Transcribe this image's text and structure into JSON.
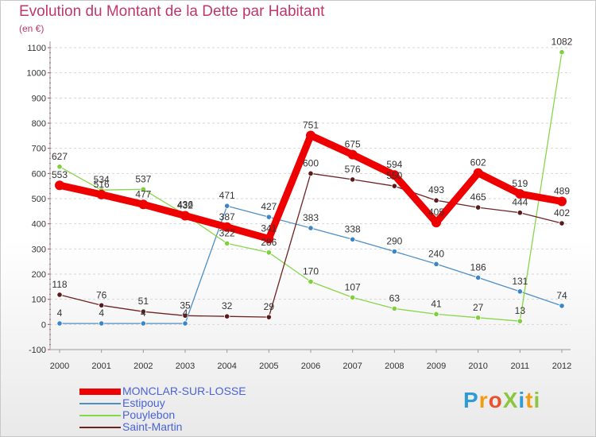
{
  "header": {
    "title": "Evolution du Montant de la Dette par Habitant",
    "subtitle": "(en €)"
  },
  "brand": {
    "text": "ProXiti",
    "letters": [
      "P",
      "r",
      "o",
      "X",
      "i",
      "t",
      "i"
    ],
    "colors": [
      "#2e9bd6",
      "#f39c12",
      "#e8542c",
      "#8cc63f",
      "#2e9bd6",
      "#f39c12",
      "#8cc63f"
    ]
  },
  "chart_data": {
    "type": "line",
    "title": "Evolution du Montant de la Dette par Habitant",
    "subtitle": "(en €)",
    "xlabel": "",
    "ylabel": "",
    "x": [
      "2000",
      "2001",
      "2002",
      "2003",
      "2004",
      "2005",
      "2006",
      "2007",
      "2008",
      "2009",
      "2010",
      "2011",
      "2012"
    ],
    "ylim": [
      -100,
      1100
    ],
    "yticks": [
      -100,
      0,
      100,
      200,
      300,
      400,
      500,
      600,
      700,
      800,
      900,
      1000,
      1100
    ],
    "grid": "horizontal dashed",
    "legend_position": "bottom-left",
    "series": [
      {
        "name": "MONCLAR-SUR-LOSSE",
        "color": "#ee0000",
        "values": [
          553,
          516,
          477,
          432,
          387,
          341,
          751,
          675,
          594,
          405,
          602,
          519,
          489
        ]
      },
      {
        "name": "Estipouy",
        "color": "#4d8fc7",
        "values": [
          4,
          4,
          4,
          4,
          471,
          427,
          383,
          338,
          290,
          240,
          186,
          131,
          74
        ]
      },
      {
        "name": "Pouylebon",
        "color": "#88d64a",
        "values": [
          627,
          534,
          537,
          436,
          322,
          286,
          170,
          107,
          63,
          41,
          27,
          13,
          1082
        ]
      },
      {
        "name": "Saint-Martin",
        "color": "#6e2323",
        "values": [
          118,
          76,
          51,
          35,
          32,
          29,
          600,
          576,
          550,
          493,
          465,
          444,
          402
        ]
      }
    ]
  }
}
